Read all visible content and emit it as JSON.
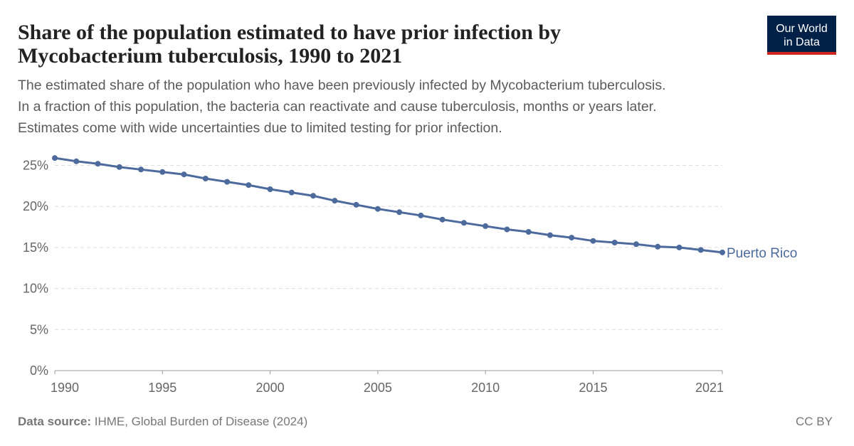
{
  "chart_data": {
    "type": "line",
    "title": [
      "Share of the population estimated to have prior infection by",
      "Mycobacterium tuberculosis, 1990 to 2021"
    ],
    "subtitle": [
      "The estimated share of the population who have been previously infected by Mycobacterium tuberculosis.",
      "In a fraction of this population, the bacteria can reactivate and cause tuberculosis, months or years later.",
      "Estimates come with wide uncertainties due to limited testing for prior infection."
    ],
    "logo": [
      "Our World",
      "in Data"
    ],
    "source_label": "Data source:",
    "source": "IHME, Global Burden of Disease (2024)",
    "license": "CC BY",
    "x": [
      1990,
      1991,
      1992,
      1993,
      1994,
      1995,
      1996,
      1997,
      1998,
      1999,
      2000,
      2001,
      2002,
      2003,
      2004,
      2005,
      2006,
      2007,
      2008,
      2009,
      2010,
      2011,
      2012,
      2013,
      2014,
      2015,
      2016,
      2017,
      2018,
      2019,
      2020,
      2021
    ],
    "series": [
      {
        "name": "Puerto Rico",
        "color": "#4c6a9c",
        "values": [
          25.9,
          25.5,
          25.2,
          24.8,
          24.5,
          24.2,
          23.9,
          23.4,
          23.0,
          22.6,
          22.1,
          21.7,
          21.3,
          20.7,
          20.2,
          19.7,
          19.3,
          18.9,
          18.4,
          18.0,
          17.6,
          17.2,
          16.9,
          16.5,
          16.2,
          15.8,
          15.6,
          15.4,
          15.1,
          15.0,
          14.7,
          14.4
        ]
      }
    ],
    "xlim": [
      1990,
      2021
    ],
    "xticks": [
      1990,
      1995,
      2000,
      2005,
      2010,
      2015,
      2021
    ],
    "ylim": [
      0,
      26
    ],
    "yticks": [
      {
        "value": 0,
        "label": "0%"
      },
      {
        "value": 5,
        "label": "5%"
      },
      {
        "value": 10,
        "label": "10%"
      },
      {
        "value": 15,
        "label": "15%"
      },
      {
        "value": 20,
        "label": "20%"
      },
      {
        "value": 25,
        "label": "25%"
      }
    ],
    "grid": true
  }
}
